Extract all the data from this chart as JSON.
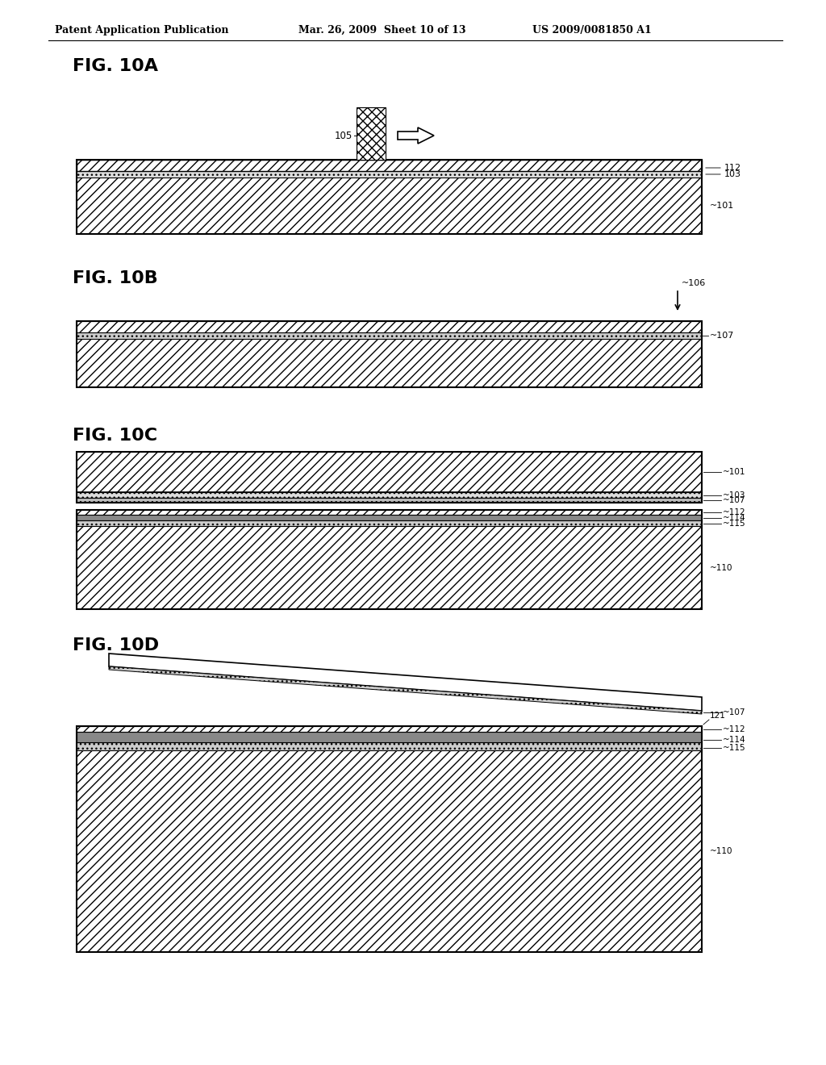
{
  "bg_color": "#ffffff",
  "header_left": "Patent Application Publication",
  "header_mid": "Mar. 26, 2009  Sheet 10 of 13",
  "header_right": "US 2009/0081850 A1",
  "text_color": "#000000"
}
